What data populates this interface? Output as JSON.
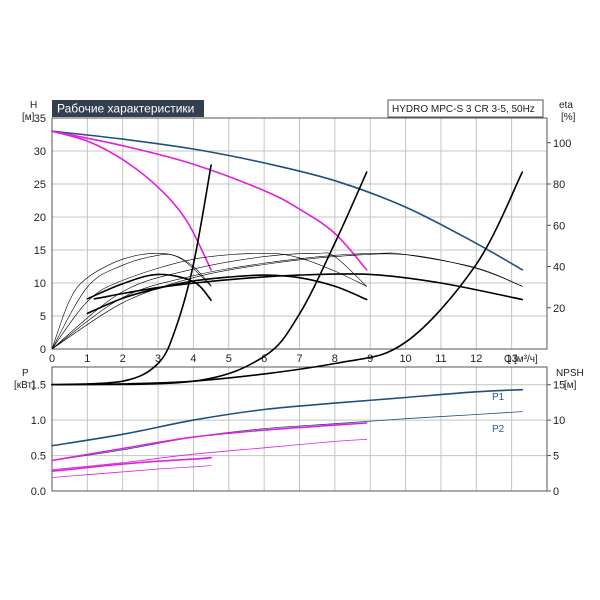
{
  "title": "Рабочие характеристики",
  "model": "HYDRO MPC-S 3 CR 3-5, 50Hz",
  "colors": {
    "navy": "#1f4e7f",
    "magenta": "#e020e0",
    "black": "#000000",
    "title_bg": "#333f4f",
    "grid": "#c4c4c4"
  },
  "chart_data": [
    {
      "type": "line",
      "panel": "head",
      "ylabel_left": "H",
      "yunit_left": "[м]",
      "ylabel_right": "eta",
      "yunit_right": "[%]",
      "xlabel": "Q",
      "xunit": "[м³/ч]",
      "xlim": [
        0,
        14
      ],
      "ylim": [
        0,
        35
      ],
      "ylim_right": [
        0,
        112
      ],
      "x_ticks": [
        "0",
        "1",
        "2",
        "3",
        "4",
        "5",
        "6",
        "7",
        "8",
        "9",
        "10",
        "11",
        "12",
        "13"
      ],
      "y_ticks": [
        "0",
        "5",
        "10",
        "15",
        "20",
        "25",
        "30",
        "35"
      ],
      "y_ticks_right": [
        "20",
        "40",
        "60",
        "80",
        "100"
      ],
      "grid": true,
      "series": [
        {
          "role": "head",
          "color": "navy",
          "width": 1.6,
          "x": [
            0,
            2,
            4,
            6,
            8,
            10,
            12,
            13.3
          ],
          "y": [
            33,
            31.8,
            30.3,
            28.2,
            25.5,
            21.5,
            16,
            12
          ]
        },
        {
          "role": "head",
          "color": "magenta",
          "width": 1.6,
          "x": [
            0,
            2,
            4,
            6,
            7,
            8,
            8.9
          ],
          "y": [
            33,
            30.8,
            28,
            24,
            21.2,
            17.5,
            12
          ]
        },
        {
          "role": "head",
          "color": "magenta",
          "width": 1.6,
          "x": [
            0,
            1,
            2,
            3,
            3.8,
            4.5
          ],
          "y": [
            33,
            31.5,
            28.7,
            24.5,
            19.5,
            12
          ]
        },
        {
          "role": "efficiency",
          "color": "black",
          "width": 1.6,
          "x": [
            1.2,
            3,
            5,
            7,
            9,
            11,
            13.3
          ],
          "y": [
            7.6,
            9.3,
            10.5,
            11.2,
            11.3,
            10,
            7.5
          ]
        },
        {
          "role": "efficiency",
          "color": "black",
          "width": 1.6,
          "x": [
            1,
            2,
            3,
            4,
            5,
            6,
            7,
            8,
            8.9
          ],
          "y": [
            5.4,
            7.7,
            9.2,
            10.3,
            10.9,
            11.2,
            10.8,
            9.5,
            7.5
          ]
        },
        {
          "role": "efficiency",
          "color": "black",
          "width": 1.6,
          "x": [
            1,
            2,
            3,
            4,
            4.5
          ],
          "y": [
            7.6,
            9.9,
            11.3,
            10.2,
            7.4
          ]
        },
        {
          "role": "efficiency",
          "color": "black",
          "width": 0.6,
          "x": [
            0,
            2,
            4,
            6,
            8,
            10,
            12,
            13.3
          ],
          "y": [
            0,
            7,
            10.8,
            12.8,
            14,
            14.3,
            12.2,
            9.5
          ]
        },
        {
          "role": "efficiency",
          "color": "black",
          "width": 0.6,
          "x": [
            0,
            1,
            2,
            4,
            6,
            7,
            8,
            8.9
          ],
          "y": [
            0,
            7.2,
            10.4,
            13.6,
            14.5,
            13.8,
            11.8,
            9.5
          ]
        },
        {
          "role": "efficiency",
          "color": "black",
          "width": 0.6,
          "x": [
            0,
            0.5,
            1,
            2,
            3,
            3.7,
            4.5
          ],
          "y": [
            0,
            7.4,
            10.8,
            13.6,
            14.5,
            13.5,
            9.5
          ]
        },
        {
          "role": "efficiency",
          "color": "black",
          "width": 0.6,
          "x": [
            0,
            2,
            4,
            6,
            8,
            9.3,
            10,
            12,
            13.3
          ],
          "y": [
            0,
            7.8,
            11.1,
            13,
            14.2,
            14.5,
            14.3,
            12.3,
            9.5
          ]
        },
        {
          "role": "efficiency",
          "color": "black",
          "width": 0.6,
          "x": [
            0,
            2,
            4,
            6,
            7.5,
            8,
            8.9
          ],
          "y": [
            0,
            8.7,
            12.1,
            14,
            14.5,
            14,
            9.5
          ]
        },
        {
          "role": "efficiency",
          "color": "black",
          "width": 0.6,
          "x": [
            0,
            1,
            2,
            3,
            3.5,
            4,
            4.5
          ],
          "y": [
            0,
            9.4,
            12.7,
            14.2,
            14.1,
            12.5,
            9.6
          ]
        }
      ]
    },
    {
      "type": "line",
      "panel": "power",
      "ylabel_left": "P",
      "yunit_left": "[кВт]",
      "ylabel_right": "NPSH",
      "yunit_right": "[м]",
      "xlim": [
        0,
        14
      ],
      "ylim": [
        0,
        1.75
      ],
      "ylim_right": [
        0,
        17.5
      ],
      "y_ticks": [
        "0.0",
        "0.5",
        "1.0",
        "1.5"
      ],
      "y_ticks_right": [
        "0",
        "5",
        "10",
        "15"
      ],
      "grid": true,
      "series_labels": {
        "p1": "P1",
        "p2": "P2"
      },
      "series": [
        {
          "role": "P1",
          "color": "navy",
          "width": 1.6,
          "x": [
            0,
            2,
            4,
            6,
            8,
            10,
            12,
            13.3
          ],
          "y": [
            0.64,
            0.8,
            1.0,
            1.15,
            1.24,
            1.32,
            1.4,
            1.43
          ]
        },
        {
          "role": "P2",
          "color": "navy",
          "width": 0.8,
          "x": [
            0,
            2,
            4,
            6,
            8,
            10,
            12,
            13.3
          ],
          "y": [
            0.43,
            0.58,
            0.76,
            0.88,
            0.95,
            1.02,
            1.08,
            1.12
          ]
        },
        {
          "role": "P1",
          "color": "magenta",
          "width": 1.6,
          "x": [
            0,
            2,
            4,
            6,
            8,
            8.9
          ],
          "y": [
            0.43,
            0.6,
            0.76,
            0.86,
            0.93,
            0.96
          ]
        },
        {
          "role": "P2",
          "color": "magenta",
          "width": 0.8,
          "x": [
            0,
            2,
            4,
            6,
            8,
            8.9
          ],
          "y": [
            0.3,
            0.4,
            0.52,
            0.61,
            0.7,
            0.73
          ]
        },
        {
          "role": "P1",
          "color": "magenta",
          "width": 1.6,
          "x": [
            0,
            1,
            2,
            3,
            4,
            4.5
          ],
          "y": [
            0.28,
            0.33,
            0.38,
            0.42,
            0.45,
            0.47
          ]
        },
        {
          "role": "P2",
          "color": "magenta",
          "width": 0.8,
          "x": [
            0,
            1,
            2,
            3,
            4,
            4.5
          ],
          "y": [
            0.19,
            0.23,
            0.27,
            0.31,
            0.34,
            0.36
          ]
        },
        {
          "role": "NPSH",
          "color": "black",
          "width": 1.6,
          "x": [
            0,
            4,
            8,
            10,
            12,
            13.3
          ],
          "y": [
            1.5,
            1.55,
            1.8,
            2.1,
            3.2,
            4.5
          ]
        },
        {
          "role": "NPSH",
          "color": "black",
          "width": 1.6,
          "x": [
            0,
            4,
            6,
            7,
            8,
            8.9
          ],
          "y": [
            1.5,
            1.55,
            1.9,
            2.5,
            3.5,
            4.5
          ]
        },
        {
          "role": "NPSH",
          "color": "black",
          "width": 1.6,
          "x": [
            0,
            2,
            3,
            3.5,
            4,
            4.5
          ],
          "y": [
            1.5,
            1.55,
            1.8,
            2.3,
            3.2,
            4.6
          ]
        }
      ]
    }
  ]
}
